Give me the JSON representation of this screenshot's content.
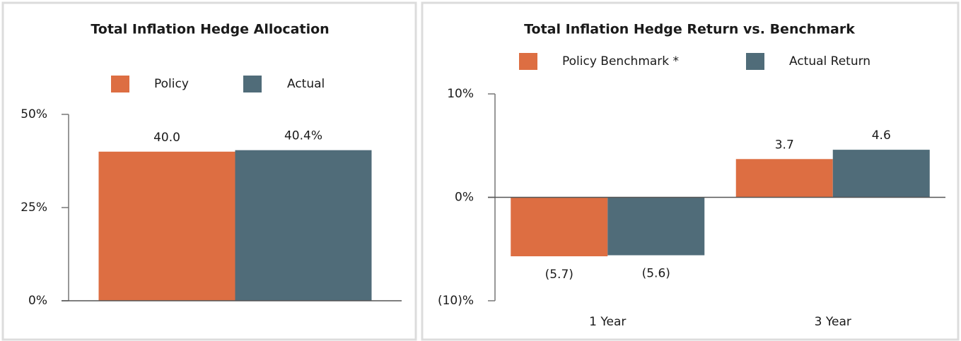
{
  "chart_data": [
    {
      "type": "bar",
      "title": "Total Inflation Hedge Allocation",
      "categories": [
        null
      ],
      "series": [
        {
          "name": "Policy",
          "color": "#dd6e42",
          "values": [
            40.0
          ],
          "value_labels": [
            "40.0"
          ]
        },
        {
          "name": "Actual",
          "color": "#506c79",
          "values": [
            40.4
          ],
          "value_labels": [
            "40.4%"
          ]
        }
      ],
      "ylim": [
        0,
        50
      ],
      "yticks": [
        {
          "value": 0,
          "label": "0%"
        },
        {
          "value": 25,
          "label": "25%"
        },
        {
          "value": 50,
          "label": "50%"
        }
      ]
    },
    {
      "type": "bar",
      "title": "Total Inflation Hedge Return vs. Benchmark",
      "categories": [
        "1 Year",
        "3 Year"
      ],
      "series": [
        {
          "name": "Policy Benchmark *",
          "color": "#dd6e42",
          "values": [
            -5.7,
            3.7
          ],
          "value_labels": [
            "(5.7)",
            "3.7"
          ]
        },
        {
          "name": "Actual Return",
          "color": "#506c79",
          "values": [
            -5.6,
            4.6
          ],
          "value_labels": [
            "(5.6)",
            "4.6"
          ]
        }
      ],
      "ylim": [
        -10,
        10
      ],
      "yticks": [
        {
          "value": -10,
          "label": "(10)%"
        },
        {
          "value": 0,
          "label": "0%"
        },
        {
          "value": 10,
          "label": "10%"
        }
      ]
    }
  ]
}
